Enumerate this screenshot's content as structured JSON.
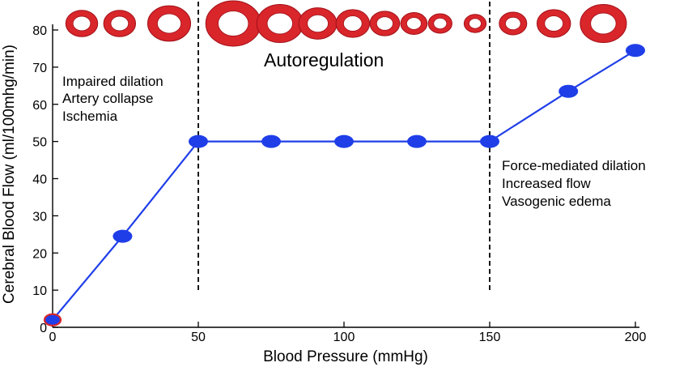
{
  "chart_data": {
    "type": "line",
    "title": "",
    "xlabel": "Blood Pressure (mmHg)",
    "ylabel": "Cerebral Blood Flow (ml/100mhg/min)",
    "xlim": [
      0,
      200
    ],
    "ylim": [
      0,
      80
    ],
    "x_ticks": [
      0,
      50,
      100,
      150,
      200
    ],
    "y_ticks": [
      0,
      10,
      20,
      30,
      40,
      50,
      60,
      70,
      80
    ],
    "grid": false,
    "line_color": "#1f3ee8",
    "marker_color": "#1f3ee8",
    "first_marker_edge_color": "#d9262b",
    "series": [
      {
        "x": [
          0,
          24,
          50,
          75,
          100,
          125,
          150,
          177,
          200
        ],
        "y": [
          2,
          24.5,
          50,
          50,
          50,
          50,
          50,
          63.5,
          74.5
        ]
      }
    ],
    "vlines": [
      50,
      150
    ],
    "vessel_color": "#d9262b",
    "vessels": [
      {
        "x": 10,
        "size": 0.58
      },
      {
        "x": 23,
        "size": 0.58
      },
      {
        "x": 40,
        "size": 0.78
      },
      {
        "x": 62,
        "size": 1.0
      },
      {
        "x": 78,
        "size": 0.84
      },
      {
        "x": 91,
        "size": 0.69
      },
      {
        "x": 103,
        "size": 0.61
      },
      {
        "x": 114,
        "size": 0.54
      },
      {
        "x": 124,
        "size": 0.48
      },
      {
        "x": 133,
        "size": 0.43
      },
      {
        "x": 145,
        "size": 0.4
      },
      {
        "x": 158,
        "size": 0.5
      },
      {
        "x": 172,
        "size": 0.61
      },
      {
        "x": 189,
        "size": 0.84
      }
    ],
    "annotations": {
      "region_title": "Autoregulation",
      "left_lines": [
        "Impaired dilation",
        "Artery collapse",
        "Ischemia"
      ],
      "right_lines": [
        "Force-mediated dilation",
        "Increased flow",
        "Vasogenic edema"
      ]
    }
  }
}
